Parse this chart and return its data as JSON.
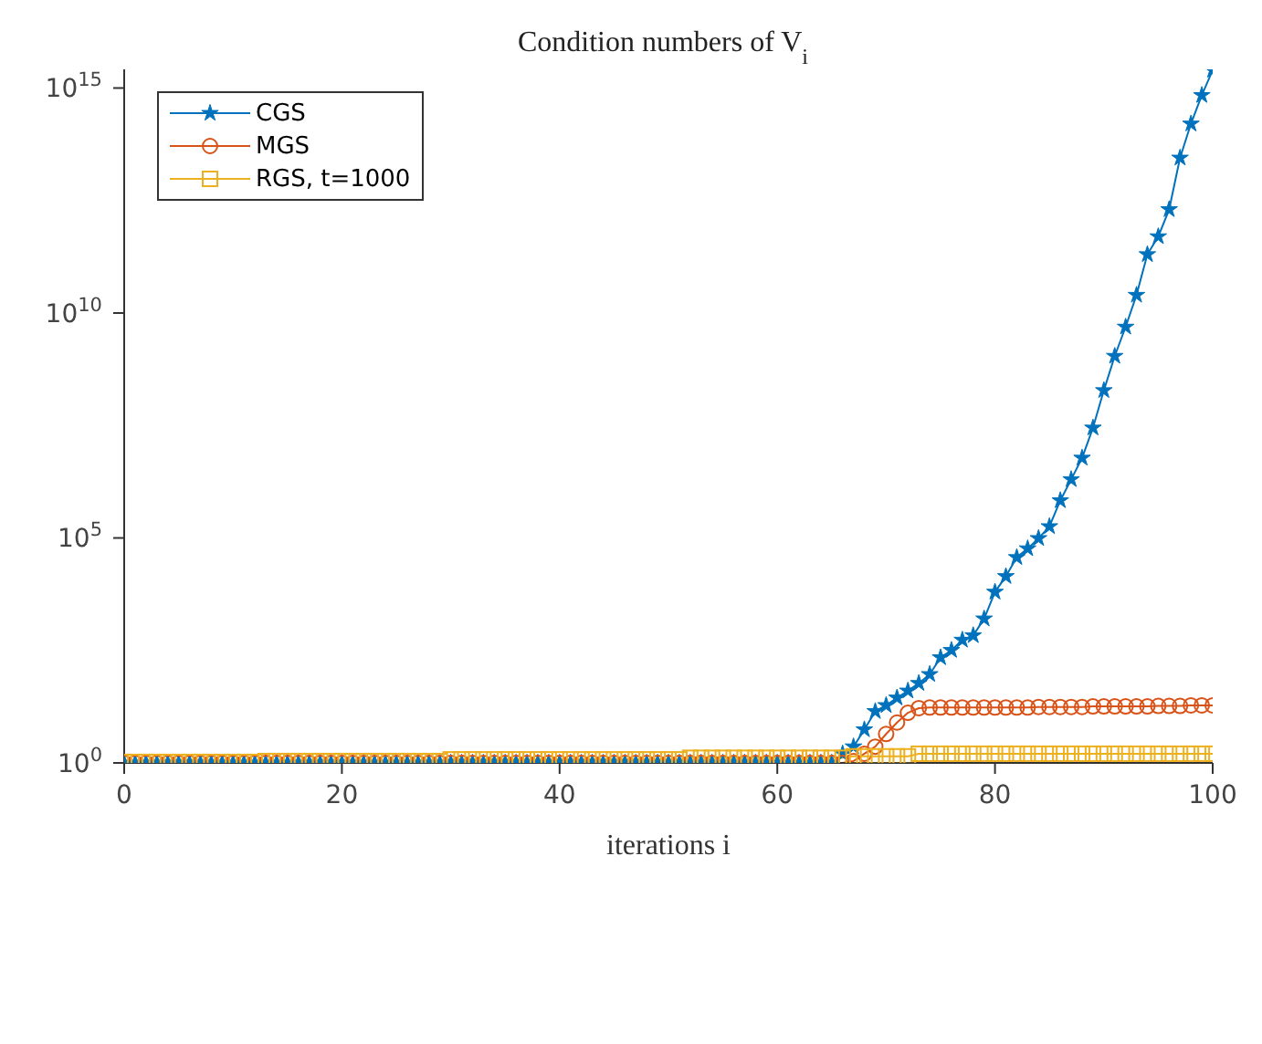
{
  "chart_data": {
    "type": "line",
    "title": "Condition numbers of V$_{i}$",
    "xlabel": "iterations i",
    "x": [
      0,
      1,
      2,
      3,
      4,
      5,
      6,
      7,
      8,
      9,
      10,
      11,
      12,
      13,
      14,
      15,
      16,
      17,
      18,
      19,
      20,
      21,
      22,
      23,
      24,
      25,
      26,
      27,
      28,
      29,
      30,
      31,
      32,
      33,
      34,
      35,
      36,
      37,
      38,
      39,
      40,
      41,
      42,
      43,
      44,
      45,
      46,
      47,
      48,
      49,
      50,
      51,
      52,
      53,
      54,
      55,
      56,
      57,
      58,
      59,
      60,
      61,
      62,
      63,
      64,
      65,
      66,
      67,
      68,
      69,
      70,
      71,
      72,
      73,
      74,
      75,
      76,
      77,
      78,
      79,
      80,
      81,
      82,
      83,
      84,
      85,
      86,
      87,
      88,
      89,
      90,
      91,
      92,
      93,
      94,
      95,
      96,
      97,
      98,
      99,
      100
    ],
    "series": [
      {
        "name": "CGS",
        "color": "#0072bd",
        "marker": "star",
        "values": [
          1,
          1,
          1,
          1,
          1,
          1,
          1,
          1,
          1,
          1,
          1,
          1,
          1,
          1,
          1,
          1,
          1,
          1,
          1,
          1,
          1,
          1,
          1,
          1,
          1,
          1,
          1,
          1,
          1,
          1,
          1,
          1,
          1,
          1,
          1,
          1,
          1,
          1,
          1,
          1,
          1,
          1,
          1,
          1,
          1,
          1,
          1,
          1,
          1,
          1,
          1,
          1,
          1,
          1,
          1,
          1,
          1,
          1,
          1,
          1,
          1,
          1,
          1,
          1,
          1,
          1,
          1.6,
          2.3,
          5.5,
          14,
          19,
          28,
          40,
          59,
          93,
          220,
          320,
          540,
          680,
          1600,
          6300,
          14000,
          37000,
          58000,
          98000,
          180000,
          680000,
          2000000,
          6000000,
          28000000,
          190000000.0,
          1100000000.0,
          4900000000.0,
          25000000000.0,
          200000000000.0,
          500000000000.0,
          2000000000000.0,
          28000000000000.0,
          160000000000000.0,
          690000000000000.0,
          2500000000000000.0
        ]
      },
      {
        "name": "MGS",
        "color": "#d95319",
        "marker": "circle",
        "values": [
          1,
          1,
          1,
          1,
          1,
          1,
          1,
          1,
          1,
          1,
          1,
          1,
          1,
          1,
          1,
          1,
          1,
          1,
          1,
          1,
          1,
          1,
          1,
          1,
          1,
          1,
          1,
          1,
          1,
          1,
          1,
          1,
          1,
          1,
          1,
          1,
          1,
          1,
          1,
          1,
          1,
          1,
          1,
          1,
          1,
          1,
          1,
          1,
          1,
          1,
          1,
          1,
          1,
          1,
          1,
          1,
          1,
          1,
          1,
          1,
          1,
          1,
          1,
          1,
          1,
          1,
          1,
          1.1,
          1.6,
          2.3,
          4.4,
          7.9,
          13,
          16.5,
          17,
          17,
          17,
          17,
          17,
          17,
          17,
          17,
          17,
          17,
          17.5,
          17.5,
          17.5,
          17.5,
          17.5,
          18,
          18,
          18,
          18,
          18,
          18,
          18.5,
          18.5,
          18.5,
          19,
          19,
          19
        ]
      },
      {
        "name": "RGS, t=1000",
        "color": "#edb120",
        "marker": "square",
        "values": [
          1.05,
          1.05,
          1.05,
          1.05,
          1.05,
          1.05,
          1.05,
          1.05,
          1.05,
          1.05,
          1.05,
          1.05,
          1.05,
          1.1,
          1.1,
          1.1,
          1.1,
          1.1,
          1.1,
          1.1,
          1.1,
          1.1,
          1.1,
          1.1,
          1.1,
          1.1,
          1.1,
          1.1,
          1.1,
          1.1,
          1.2,
          1.2,
          1.2,
          1.2,
          1.2,
          1.2,
          1.2,
          1.2,
          1.2,
          1.2,
          1.2,
          1.2,
          1.2,
          1.2,
          1.2,
          1.2,
          1.2,
          1.2,
          1.2,
          1.2,
          1.2,
          1.2,
          1.3,
          1.3,
          1.3,
          1.3,
          1.3,
          1.3,
          1.3,
          1.3,
          1.3,
          1.3,
          1.3,
          1.3,
          1.3,
          1.3,
          1.3,
          1.4,
          1.4,
          1.4,
          1.4,
          1.4,
          1.4,
          1.6,
          1.6,
          1.6,
          1.6,
          1.6,
          1.6,
          1.6,
          1.6,
          1.6,
          1.6,
          1.6,
          1.6,
          1.6,
          1.6,
          1.6,
          1.6,
          1.6,
          1.6,
          1.6,
          1.6,
          1.6,
          1.6,
          1.6,
          1.6,
          1.6,
          1.6,
          1.6,
          1.6
        ]
      }
    ],
    "log": true,
    "xlim": [
      0,
      100
    ],
    "xticks": [
      0,
      20,
      40,
      60,
      80,
      100
    ],
    "ylim": [
      1,
      2600000000000000.0
    ],
    "yticks": [
      {
        "value": 1,
        "label": "10$^{0}$"
      },
      {
        "value": 100000,
        "label": "10$^{5}$"
      },
      {
        "value": 10000000000.0,
        "label": "10$^{10}$"
      },
      {
        "value": 1000000000000000.0,
        "label": "10$^{15}$"
      }
    ],
    "legend": "top left",
    "grid": false,
    "line_style": "solid"
  }
}
